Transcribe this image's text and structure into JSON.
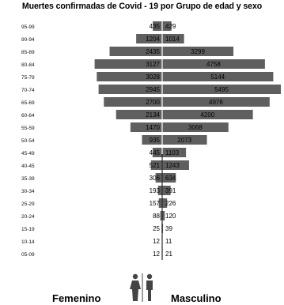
{
  "chart_data": {
    "type": "bar",
    "orientation": "horizontal-population-pyramid",
    "title": "Muertes confirmadas de Covid - 19 por Grupo de edad y sexo",
    "categories": [
      "95-99",
      "90-94",
      "85-89",
      "80-84",
      "75-79",
      "70-74",
      "65-69",
      "60-64",
      "55-59",
      "50-54",
      "45-49",
      "40-45",
      "35-39",
      "30-34",
      "25-29",
      "20-24",
      "15-19",
      "10-14",
      "05-09"
    ],
    "series": [
      {
        "name": "Femenino",
        "side": "left",
        "values": [
          435,
          1204,
          2435,
          3127,
          3028,
          2945,
          2700,
          2134,
          1470,
          935,
          445,
          521,
          306,
          193,
          157,
          88,
          25,
          12,
          12
        ]
      },
      {
        "name": "Masculino",
        "side": "right",
        "values": [
          429,
          1014,
          3299,
          4758,
          5144,
          5495,
          4976,
          4200,
          3068,
          2073,
          1103,
          1243,
          634,
          391,
          226,
          120,
          39,
          11,
          21
        ]
      }
    ],
    "xlim": [
      0,
      5600
    ],
    "grid": false,
    "bar_color": "#5f5f5f"
  },
  "footer": {
    "female_label": "Femenino",
    "male_label": "Masculino",
    "icon": "male-female-people-icon"
  }
}
